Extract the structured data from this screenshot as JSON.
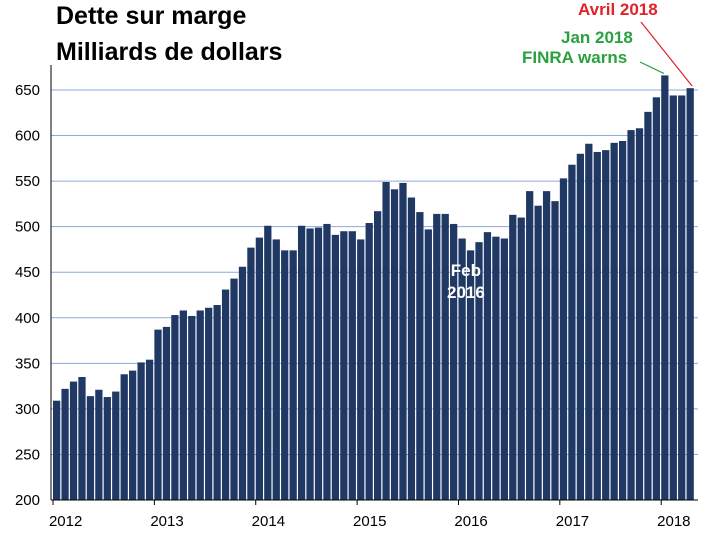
{
  "chart_data": {
    "type": "bar",
    "title": "Dette sur marge",
    "subtitle": "Milliards de dollars",
    "xlabel": "",
    "ylabel": "",
    "ylim": [
      200,
      660
    ],
    "yticks": [
      200,
      250,
      300,
      350,
      400,
      450,
      500,
      550,
      600,
      650
    ],
    "xticks": [
      "2012",
      "2013",
      "2014",
      "2015",
      "2016",
      "2017",
      "2018"
    ],
    "grid": true,
    "bar_color": "#1f3864",
    "gridline_color": "#8faadc",
    "categories": [
      "2012-01",
      "2012-02",
      "2012-03",
      "2012-04",
      "2012-05",
      "2012-06",
      "2012-07",
      "2012-08",
      "2012-09",
      "2012-10",
      "2012-11",
      "2012-12",
      "2013-01",
      "2013-02",
      "2013-03",
      "2013-04",
      "2013-05",
      "2013-06",
      "2013-07",
      "2013-08",
      "2013-09",
      "2013-10",
      "2013-11",
      "2013-12",
      "2014-01",
      "2014-02",
      "2014-03",
      "2014-04",
      "2014-05",
      "2014-06",
      "2014-07",
      "2014-08",
      "2014-09",
      "2014-10",
      "2014-11",
      "2014-12",
      "2015-01",
      "2015-02",
      "2015-03",
      "2015-04",
      "2015-05",
      "2015-06",
      "2015-07",
      "2015-08",
      "2015-09",
      "2015-10",
      "2015-11",
      "2015-12",
      "2016-01",
      "2016-02",
      "2016-03",
      "2016-04",
      "2016-05",
      "2016-06",
      "2016-07",
      "2016-08",
      "2016-09",
      "2016-10",
      "2016-11",
      "2016-12",
      "2017-01",
      "2017-02",
      "2017-03",
      "2017-04",
      "2017-05",
      "2017-06",
      "2017-07",
      "2017-08",
      "2017-09",
      "2017-10",
      "2017-11",
      "2017-12",
      "2018-01",
      "2018-02",
      "2018-03",
      "2018-04"
    ],
    "values": [
      309,
      322,
      330,
      335,
      314,
      321,
      313,
      319,
      338,
      342,
      351,
      354,
      387,
      390,
      403,
      408,
      402,
      408,
      411,
      414,
      431,
      443,
      456,
      477,
      488,
      501,
      486,
      474,
      474,
      501,
      498,
      499,
      503,
      491,
      495,
      495,
      486,
      504,
      517,
      549,
      541,
      548,
      532,
      516,
      497,
      514,
      514,
      503,
      487,
      474,
      483,
      494,
      489,
      487,
      513,
      510,
      539,
      523,
      539,
      528,
      553,
      568,
      580,
      591,
      582,
      584,
      592,
      594,
      606,
      608,
      626,
      642,
      666,
      644,
      644,
      652
    ],
    "annotations": [
      {
        "text": "Avril  2018",
        "color": "#e0222b",
        "points_to": "2018-04"
      },
      {
        "text": "Jan 2018",
        "color": "#2aa13f",
        "points_to": "2018-01"
      },
      {
        "text": "FINRA warns",
        "color": "#2aa13f",
        "points_to": "2018-01"
      },
      {
        "text": "Feb\n2016",
        "color": "#ffffff",
        "points_to": "2016-02"
      }
    ]
  }
}
